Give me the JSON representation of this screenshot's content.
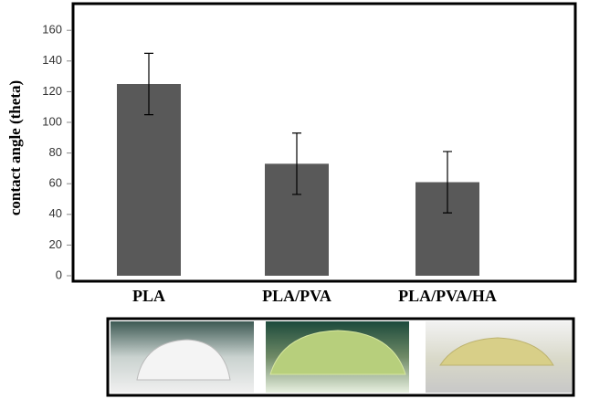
{
  "chart_data": {
    "type": "bar",
    "y_label": "contact angle (theta)",
    "categories": [
      "PLA",
      "PLA/PVA",
      "PLA/PVA/HA"
    ],
    "values": [
      125,
      73,
      61
    ],
    "errors": [
      20,
      20,
      20
    ],
    "color": "#595959",
    "ylim": [
      0,
      175
    ],
    "yticks": [
      0,
      20,
      40,
      60,
      80,
      100,
      120,
      140,
      160
    ]
  }
}
